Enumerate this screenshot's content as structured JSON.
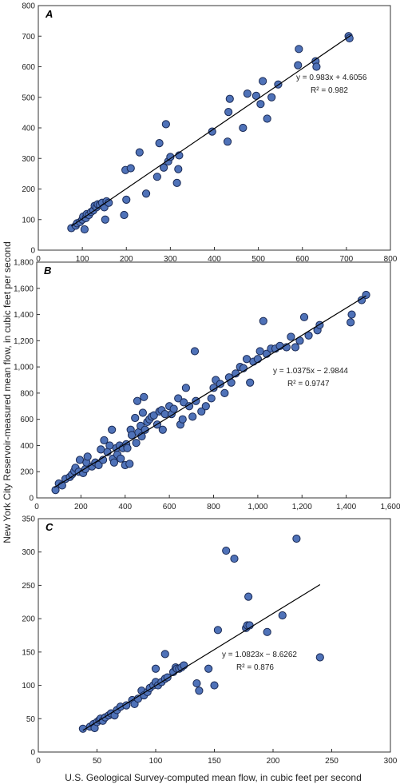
{
  "chart_data": [
    {
      "type": "scatter",
      "panel_label": "A",
      "xlim": [
        0,
        800
      ],
      "ylim": [
        0,
        800
      ],
      "xticks": [
        "0",
        "100",
        "200",
        "300",
        "400",
        "500",
        "600",
        "700",
        "800"
      ],
      "yticks": [
        "0",
        "100",
        "200",
        "300",
        "400",
        "500",
        "600",
        "700",
        "800"
      ],
      "trendline": {
        "slope": 0.983,
        "intercept": 4.6056,
        "x_range": [
          75,
          710
        ]
      },
      "equation": "y = 0.983x + 4.6056",
      "r2": "R² = 0.982",
      "points": [
        [
          75,
          72
        ],
        [
          85,
          80
        ],
        [
          88,
          88
        ],
        [
          95,
          92
        ],
        [
          100,
          100
        ],
        [
          102,
          110
        ],
        [
          105,
          68
        ],
        [
          108,
          105
        ],
        [
          110,
          118
        ],
        [
          115,
          115
        ],
        [
          120,
          125
        ],
        [
          125,
          130
        ],
        [
          128,
          145
        ],
        [
          132,
          140
        ],
        [
          135,
          150
        ],
        [
          140,
          148
        ],
        [
          145,
          155
        ],
        [
          150,
          140
        ],
        [
          152,
          100
        ],
        [
          155,
          160
        ],
        [
          160,
          155
        ],
        [
          195,
          115
        ],
        [
          198,
          262
        ],
        [
          200,
          165
        ],
        [
          210,
          268
        ],
        [
          230,
          320
        ],
        [
          245,
          185
        ],
        [
          270,
          240
        ],
        [
          275,
          350
        ],
        [
          285,
          270
        ],
        [
          290,
          412
        ],
        [
          295,
          290
        ],
        [
          300,
          305
        ],
        [
          315,
          220
        ],
        [
          318,
          265
        ],
        [
          320,
          310
        ],
        [
          395,
          388
        ],
        [
          430,
          355
        ],
        [
          432,
          452
        ],
        [
          435,
          495
        ],
        [
          465,
          400
        ],
        [
          475,
          512
        ],
        [
          495,
          505
        ],
        [
          505,
          478
        ],
        [
          510,
          553
        ],
        [
          520,
          430
        ],
        [
          530,
          500
        ],
        [
          545,
          542
        ],
        [
          590,
          605
        ],
        [
          592,
          658
        ],
        [
          630,
          618
        ],
        [
          632,
          600
        ],
        [
          705,
          700
        ],
        [
          707,
          693
        ]
      ]
    },
    {
      "type": "scatter",
      "panel_label": "B",
      "xlim": [
        0,
        1600
      ],
      "ylim": [
        0,
        1800
      ],
      "xticks": [
        "0",
        "200",
        "400",
        "600",
        "800",
        "1,000",
        "1,200",
        "1,400",
        "1,600"
      ],
      "yticks": [
        "0",
        "200",
        "400",
        "600",
        "800",
        "1,000",
        "1,200",
        "1,400",
        "1,600",
        "1,800"
      ],
      "trendline": {
        "slope": 1.0375,
        "intercept": -2.9844,
        "x_range": [
          80,
          1490
        ]
      },
      "equation": "y = 1.0375x − 2.9844",
      "r2": "R² = 0.9747",
      "points": [
        [
          85,
          60
        ],
        [
          100,
          110
        ],
        [
          115,
          95
        ],
        [
          130,
          145
        ],
        [
          150,
          160
        ],
        [
          160,
          180
        ],
        [
          170,
          205
        ],
        [
          175,
          230
        ],
        [
          190,
          200
        ],
        [
          195,
          290
        ],
        [
          210,
          190
        ],
        [
          220,
          220
        ],
        [
          225,
          270
        ],
        [
          230,
          315
        ],
        [
          250,
          240
        ],
        [
          265,
          270
        ],
        [
          280,
          250
        ],
        [
          290,
          370
        ],
        [
          300,
          290
        ],
        [
          305,
          440
        ],
        [
          320,
          350
        ],
        [
          330,
          400
        ],
        [
          340,
          520
        ],
        [
          345,
          300
        ],
        [
          350,
          270
        ],
        [
          360,
          380
        ],
        [
          365,
          330
        ],
        [
          375,
          400
        ],
        [
          380,
          300
        ],
        [
          390,
          380
        ],
        [
          400,
          250
        ],
        [
          405,
          410
        ],
        [
          410,
          380
        ],
        [
          420,
          260
        ],
        [
          425,
          520
        ],
        [
          430,
          480
        ],
        [
          445,
          610
        ],
        [
          450,
          420
        ],
        [
          455,
          740
        ],
        [
          460,
          500
        ],
        [
          470,
          550
        ],
        [
          475,
          470
        ],
        [
          480,
          650
        ],
        [
          485,
          770
        ],
        [
          490,
          520
        ],
        [
          500,
          580
        ],
        [
          510,
          600
        ],
        [
          520,
          620
        ],
        [
          530,
          630
        ],
        [
          545,
          560
        ],
        [
          555,
          660
        ],
        [
          565,
          670
        ],
        [
          570,
          520
        ],
        [
          580,
          640
        ],
        [
          600,
          700
        ],
        [
          610,
          640
        ],
        [
          620,
          680
        ],
        [
          640,
          760
        ],
        [
          650,
          560
        ],
        [
          660,
          600
        ],
        [
          665,
          730
        ],
        [
          675,
          840
        ],
        [
          690,
          700
        ],
        [
          705,
          620
        ],
        [
          715,
          1120
        ],
        [
          720,
          740
        ],
        [
          745,
          660
        ],
        [
          765,
          700
        ],
        [
          790,
          760
        ],
        [
          800,
          840
        ],
        [
          810,
          900
        ],
        [
          830,
          870
        ],
        [
          850,
          800
        ],
        [
          870,
          920
        ],
        [
          880,
          880
        ],
        [
          900,
          950
        ],
        [
          920,
          1000
        ],
        [
          935,
          990
        ],
        [
          950,
          1060
        ],
        [
          965,
          880
        ],
        [
          980,
          1040
        ],
        [
          1000,
          1060
        ],
        [
          1010,
          1120
        ],
        [
          1025,
          1350
        ],
        [
          1040,
          1100
        ],
        [
          1060,
          1140
        ],
        [
          1080,
          1140
        ],
        [
          1100,
          1160
        ],
        [
          1130,
          1150
        ],
        [
          1150,
          1230
        ],
        [
          1170,
          1150
        ],
        [
          1190,
          1200
        ],
        [
          1210,
          1380
        ],
        [
          1230,
          1240
        ],
        [
          1270,
          1280
        ],
        [
          1280,
          1320
        ],
        [
          1420,
          1340
        ],
        [
          1425,
          1400
        ],
        [
          1470,
          1510
        ],
        [
          1490,
          1550
        ]
      ]
    },
    {
      "type": "scatter",
      "panel_label": "C",
      "xlim": [
        0,
        300
      ],
      "ylim": [
        0,
        350
      ],
      "xticks": [
        "0",
        "50",
        "100",
        "150",
        "200",
        "250",
        "300"
      ],
      "yticks": [
        "0",
        "50",
        "100",
        "150",
        "200",
        "250",
        "300",
        "350"
      ],
      "trendline": {
        "slope": 1.0823,
        "intercept": -8.6262,
        "x_range": [
          38,
          240
        ]
      },
      "equation": "y = 1.0823x − 8.6262",
      "r2": "R² = 0.876",
      "points": [
        [
          38,
          35
        ],
        [
          44,
          38
        ],
        [
          47,
          42
        ],
        [
          48,
          36
        ],
        [
          50,
          45
        ],
        [
          52,
          48
        ],
        [
          53,
          50
        ],
        [
          55,
          47
        ],
        [
          57,
          52
        ],
        [
          60,
          55
        ],
        [
          62,
          58
        ],
        [
          65,
          55
        ],
        [
          67,
          63
        ],
        [
          70,
          68
        ],
        [
          75,
          70
        ],
        [
          80,
          78
        ],
        [
          82,
          72
        ],
        [
          85,
          80
        ],
        [
          88,
          92
        ],
        [
          90,
          85
        ],
        [
          93,
          90
        ],
        [
          95,
          96
        ],
        [
          98,
          100
        ],
        [
          100,
          105
        ],
        [
          102,
          100
        ],
        [
          105,
          105
        ],
        [
          108,
          110
        ],
        [
          110,
          112
        ],
        [
          115,
          120
        ],
        [
          117,
          127
        ],
        [
          118,
          125
        ],
        [
          120,
          125
        ],
        [
          122,
          127
        ],
        [
          124,
          130
        ],
        [
          100,
          125
        ],
        [
          108,
          147
        ],
        [
          135,
          103
        ],
        [
          137,
          92
        ],
        [
          145,
          125
        ],
        [
          150,
          100
        ],
        [
          153,
          183
        ],
        [
          160,
          302
        ],
        [
          167,
          290
        ],
        [
          177,
          186
        ],
        [
          178,
          190
        ],
        [
          179,
          233
        ],
        [
          180,
          190
        ],
        [
          195,
          180
        ],
        [
          208,
          205
        ],
        [
          220,
          320
        ],
        [
          240,
          142
        ]
      ]
    }
  ],
  "x_axis_label": "U.S. Geological Survey-computed mean flow, in cubic feet per second",
  "y_axis_label": "New York City Reservoir-measured mean flow, in cubic feet per second"
}
